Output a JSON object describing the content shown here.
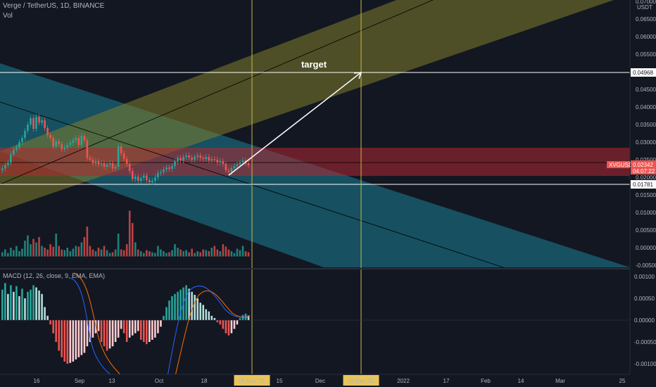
{
  "header": {
    "symbol_line": "Verge / TetherUS, 1D, BINANCE",
    "volume_label": "Vol",
    "macd_label": "MACD (12, 26, close, 9, EMA, EMA)",
    "currency": "USDT"
  },
  "annotation": {
    "target_label": "target"
  },
  "price_tags": {
    "target": "0.04968",
    "symbol": "XVGUSDT",
    "last_price": "0.02342",
    "countdown": "04:07:22",
    "support": "0.01781"
  },
  "colors": {
    "background": "#131722",
    "up": "#26a69a",
    "down": "#ef5350",
    "channel_up": "#807d2a",
    "channel_down": "#1b7f96",
    "red_zone": "#b22833",
    "vertical_marker": "#c9b84a",
    "date_tag_bg": "#e8c558"
  },
  "chart_data": [
    {
      "type": "candlestick",
      "title": "Verge / TetherUS, 1D, BINANCE",
      "x_ticks": [
        "16",
        "Sep",
        "13",
        "Oct",
        "18",
        "05 Nov '21",
        "15",
        "Dec",
        "16 Dec '21",
        "2022",
        "17",
        "Feb",
        "14",
        "Mar",
        "25"
      ],
      "y_ticks": [
        "0.07000",
        "0.06500",
        "0.06000",
        "0.05500",
        "0.05000",
        "0.04500",
        "0.04000",
        "0.03500",
        "0.03000",
        "0.02500",
        "0.02000",
        "0.01500",
        "0.01000",
        "0.00500",
        "0.00000",
        "-0.00500"
      ],
      "ylim": [
        -0.0055,
        0.0705
      ],
      "horizontal_levels": [
        0.04968,
        0.01781
      ],
      "close": [
        0.0225,
        0.0235,
        0.0242,
        0.0265,
        0.0278,
        0.0285,
        0.03,
        0.0312,
        0.0332,
        0.035,
        0.0368,
        0.0338,
        0.0372,
        0.0355,
        0.0362,
        0.034,
        0.032,
        0.0312,
        0.0288,
        0.0302,
        0.0295,
        0.028,
        0.0285,
        0.0292,
        0.0298,
        0.0305,
        0.0312,
        0.0292,
        0.0318,
        0.0305,
        0.0255,
        0.025,
        0.024,
        0.0246,
        0.0237,
        0.024,
        0.023,
        0.0236,
        0.024,
        0.0225,
        0.023,
        0.0288,
        0.0268,
        0.0252,
        0.0238,
        0.0218,
        0.0195,
        0.0202,
        0.019,
        0.0198,
        0.0205,
        0.0192,
        0.0186,
        0.019,
        0.02,
        0.0212,
        0.0215,
        0.0222,
        0.0228,
        0.0224,
        0.0232,
        0.0245,
        0.0255,
        0.0248,
        0.0258,
        0.0262,
        0.0256,
        0.025,
        0.0258,
        0.0262,
        0.0255,
        0.0252,
        0.0258,
        0.0248,
        0.0252,
        0.025,
        0.0242,
        0.0246,
        0.0238,
        0.022,
        0.0215,
        0.0226,
        0.0232,
        0.0237,
        0.0242,
        0.0248,
        0.024,
        0.0234
      ],
      "series": [
        {
          "name": "Vol",
          "values": [
            0.0012,
            0.002,
            0.001,
            0.0025,
            0.0018,
            0.003,
            0.0015,
            0.0022,
            0.0045,
            0.006,
            0.0035,
            0.005,
            0.004,
            0.0055,
            0.003,
            0.0025,
            0.002,
            0.0035,
            0.0028,
            0.0065,
            0.003,
            0.002,
            0.0018,
            0.0025,
            0.0015,
            0.0022,
            0.003,
            0.0028,
            0.004,
            0.0055,
            0.0085,
            0.003,
            0.002,
            0.0015,
            0.0025,
            0.002,
            0.003,
            0.0018,
            0.001,
            0.0012,
            0.002,
            0.0065,
            0.002,
            0.0018,
            0.0035,
            0.013,
            0.0095,
            0.004,
            0.002,
            0.0015,
            0.001,
            0.0018,
            0.0015,
            0.0012,
            0.001,
            0.003,
            0.002,
            0.0015,
            0.001,
            0.0012,
            0.0018,
            0.0035,
            0.0025,
            0.002,
            0.0015,
            0.0018,
            0.0012,
            0.0022,
            0.001,
            0.0015,
            0.0012,
            0.002,
            0.0018,
            0.0015,
            0.0025,
            0.003,
            0.002,
            0.0015,
            0.0035,
            0.0028,
            0.002,
            0.0015,
            0.001,
            0.0022,
            0.0018,
            0.003,
            0.0015,
            0.0012
          ]
        }
      ]
    },
    {
      "type": "bar",
      "title": "MACD (12, 26, close, 9, EMA, EMA)",
      "y_ticks": [
        "0.00100",
        "0.00050",
        "0.00000",
        "-0.00050",
        "-0.00100"
      ],
      "ylim": [
        -0.00108,
        0.00108
      ],
      "series": [
        {
          "name": "Histogram",
          "values": [
            0.0007,
            0.00085,
            0.0006,
            0.0008,
            0.00065,
            0.00078,
            0.00055,
            0.00072,
            0.0005,
            0.00065,
            0.0007,
            0.0008,
            0.00075,
            0.00068,
            0.0006,
            0.0003,
            0.0001,
            -0.0001,
            -0.0003,
            -0.0005,
            -0.0007,
            -0.00085,
            -0.00095,
            -0.001,
            -0.00098,
            -0.00095,
            -0.0009,
            -0.00085,
            -0.0008,
            -0.00075,
            -0.0006,
            -0.0005,
            -0.0004,
            -0.0003,
            -0.00025,
            -0.0005,
            -0.0006,
            -0.0007,
            -0.00065,
            -0.0006,
            -0.0005,
            -0.0004,
            -0.0002,
            -0.0003,
            -0.0005,
            -0.0004,
            -0.00035,
            -0.0003,
            -0.00025,
            -0.00045,
            -0.0005,
            -0.00055,
            -0.0005,
            -0.00045,
            -0.0004,
            -0.0003,
            -0.00015,
            0.0001,
            0.0003,
            0.00045,
            0.00055,
            0.0006,
            0.00065,
            0.0007,
            0.00075,
            0.0008,
            0.00072,
            0.00065,
            0.00058,
            0.0005,
            0.0004,
            0.00035,
            0.00025,
            0.0002,
            0.0001,
            5e-05,
            -5e-05,
            -0.0001,
            -0.0002,
            -0.0003,
            -0.00035,
            -0.0003,
            -0.0002,
            -0.0001,
            5e-05,
            0.00012,
            0.00015,
            0.0001
          ]
        }
      ]
    }
  ]
}
